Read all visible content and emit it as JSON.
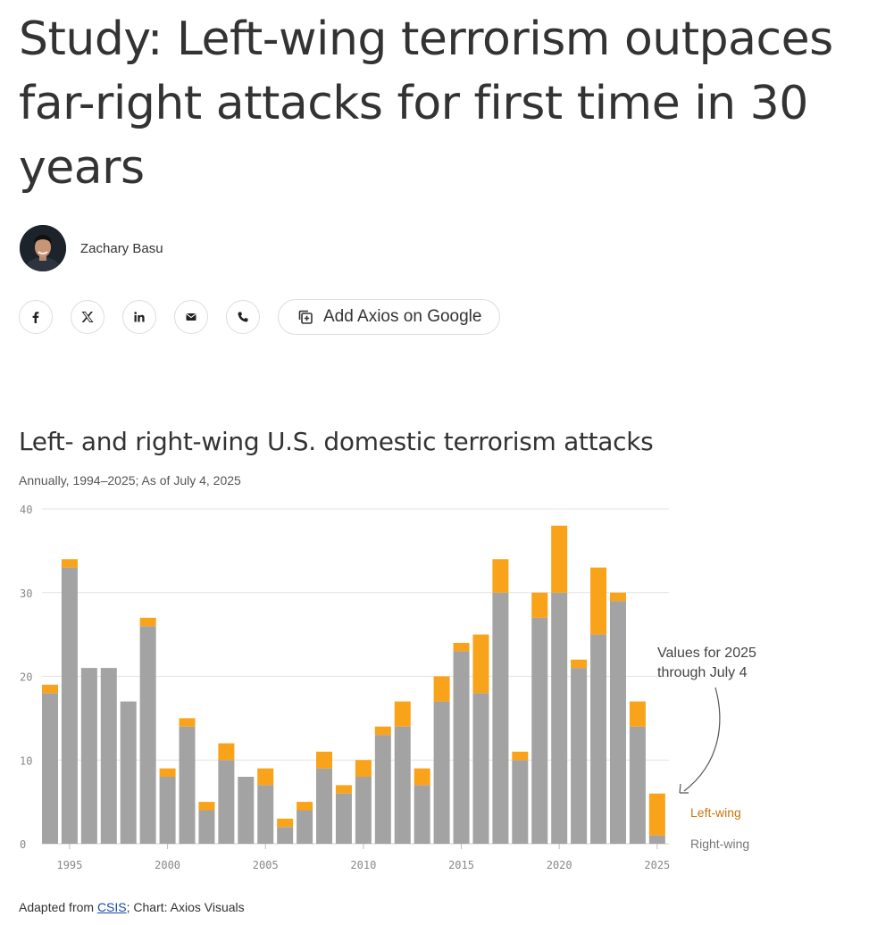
{
  "article": {
    "headline": "Study: Left-wing terrorism outpaces far-right attacks for first time in 30 years",
    "author": "Zachary Basu"
  },
  "share": {
    "icons": [
      "facebook-icon",
      "x-icon",
      "linkedin-icon",
      "email-icon",
      "phone-icon"
    ],
    "add_google_label": "Add Axios on Google"
  },
  "chart": {
    "title": "Left- and right-wing U.S. domestic terrorism attacks",
    "subtitle": "Annually, 1994–2025; As of July 4, 2025",
    "annotation_line1": "Values for 2025",
    "annotation_line2": "through July 4",
    "legend_left": "Left-wing",
    "legend_right": "Right-wing"
  },
  "source": {
    "prefix": "Adapted from ",
    "link": "CSIS",
    "suffix": "; Chart: Axios Visuals"
  },
  "colors": {
    "left_wing": "#f9a31a",
    "right_wing": "#a3a3a3",
    "legend_left_text": "#c7790e",
    "legend_right_text": "#777777"
  },
  "chart_data": {
    "type": "bar",
    "stacked": true,
    "categories": [
      1994,
      1995,
      1996,
      1997,
      1998,
      1999,
      2000,
      2001,
      2002,
      2003,
      2004,
      2005,
      2006,
      2007,
      2008,
      2009,
      2010,
      2011,
      2012,
      2013,
      2014,
      2015,
      2016,
      2017,
      2018,
      2019,
      2020,
      2021,
      2022,
      2023,
      2024,
      2025
    ],
    "series": [
      {
        "name": "Right-wing",
        "values": [
          18,
          33,
          21,
          21,
          17,
          26,
          8,
          14,
          4,
          10,
          8,
          7,
          2,
          4,
          9,
          6,
          8,
          13,
          14,
          7,
          17,
          23,
          18,
          30,
          10,
          27,
          30,
          21,
          25,
          29,
          14,
          1
        ]
      },
      {
        "name": "Left-wing",
        "values": [
          1,
          1,
          0,
          0,
          0,
          1,
          1,
          1,
          1,
          2,
          0,
          2,
          1,
          1,
          2,
          1,
          2,
          1,
          3,
          2,
          3,
          1,
          7,
          4,
          1,
          3,
          8,
          1,
          8,
          1,
          3,
          5
        ]
      }
    ],
    "ylim": [
      0,
      40
    ],
    "yticks": [
      0,
      10,
      20,
      30,
      40
    ],
    "xticks": [
      1995,
      2000,
      2005,
      2010,
      2015,
      2020,
      2025
    ],
    "grid": true,
    "legend": "right"
  }
}
